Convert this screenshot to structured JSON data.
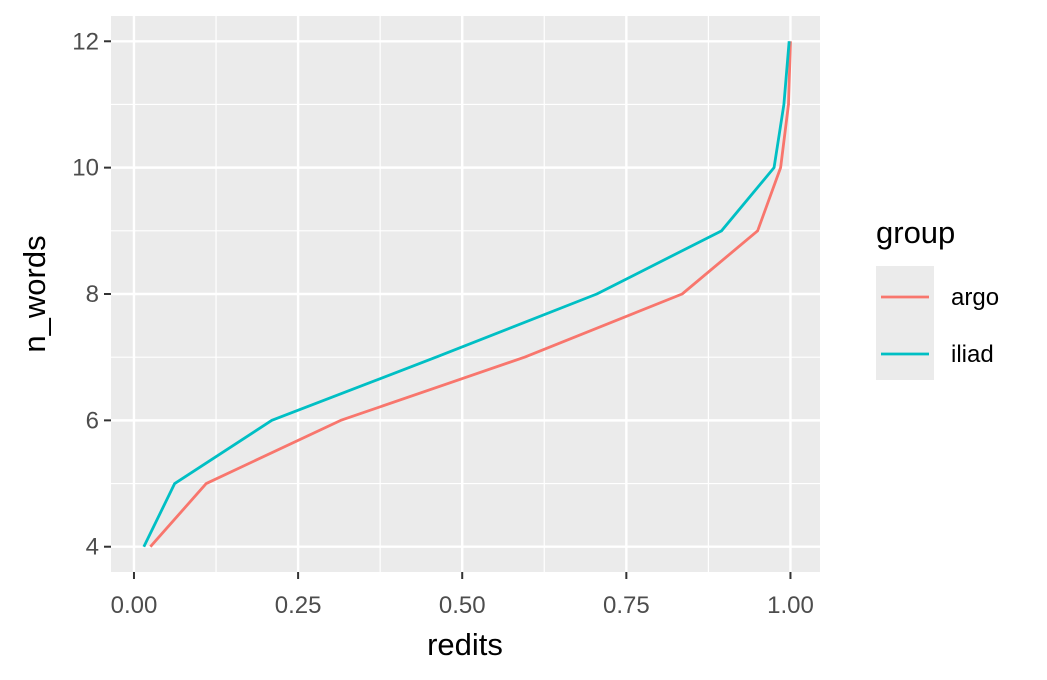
{
  "chart_data": {
    "type": "line",
    "xlabel": "redits",
    "ylabel": "n_words",
    "xlim": [
      -0.035,
      1.045
    ],
    "ylim": [
      3.6,
      12.4
    ],
    "x_ticks": [
      {
        "value": 0,
        "label": "0.00"
      },
      {
        "value": 0.25,
        "label": "0.25"
      },
      {
        "value": 0.5,
        "label": "0.50"
      },
      {
        "value": 0.75,
        "label": "0.75"
      },
      {
        "value": 1,
        "label": "1.00"
      }
    ],
    "x_minor": [
      0.125,
      0.375,
      0.625,
      0.875
    ],
    "y_ticks": [
      {
        "value": 4,
        "label": "4"
      },
      {
        "value": 6,
        "label": "6"
      },
      {
        "value": 8,
        "label": "8"
      },
      {
        "value": 10,
        "label": "10"
      },
      {
        "value": 12,
        "label": "12"
      }
    ],
    "y_minor": [
      5,
      7,
      9,
      11
    ],
    "grid": true,
    "legend": {
      "title": "group",
      "position": "right"
    },
    "series": [
      {
        "name": "argo",
        "color": "#F8766D",
        "points": [
          [
            0.025,
            4
          ],
          [
            0.11,
            5
          ],
          [
            0.315,
            6
          ],
          [
            0.595,
            7
          ],
          [
            0.835,
            8
          ],
          [
            0.95,
            9
          ],
          [
            0.985,
            10
          ],
          [
            0.997,
            11
          ],
          [
            1.0,
            12
          ]
        ]
      },
      {
        "name": "iliad",
        "color": "#00BFC4",
        "points": [
          [
            0.015,
            4
          ],
          [
            0.062,
            5
          ],
          [
            0.21,
            6
          ],
          [
            0.46,
            7
          ],
          [
            0.705,
            8
          ],
          [
            0.895,
            9
          ],
          [
            0.975,
            10
          ],
          [
            0.99,
            11
          ],
          [
            0.998,
            12
          ]
        ]
      }
    ]
  }
}
